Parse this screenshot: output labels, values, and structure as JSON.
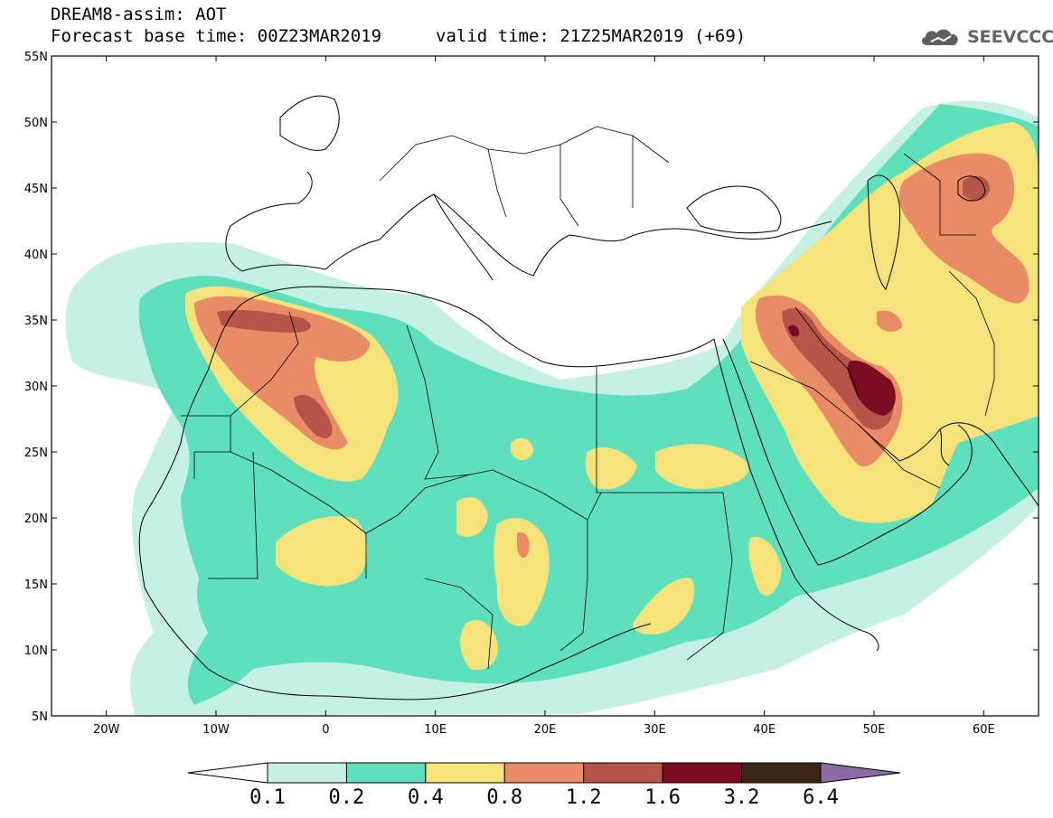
{
  "header": {
    "title": "DREAM8-assim: AOT",
    "base_time_label": "Forecast base time: 00Z23MAR2019",
    "valid_time_label": "valid time: 21Z25MAR2019 (+69)",
    "logo_text": "SEEVCCC"
  },
  "map": {
    "variable": "AOT",
    "projection": "lat-lon",
    "lon_range": [
      -25,
      65
    ],
    "lat_range": [
      5,
      55
    ],
    "lat_ticks": [
      "5N",
      "10N",
      "15N",
      "20N",
      "25N",
      "30N",
      "35N",
      "40N",
      "45N",
      "50N",
      "55N"
    ],
    "lon_ticks": [
      "20W",
      "10W",
      "0",
      "10E",
      "20E",
      "30E",
      "40E",
      "50E",
      "60E"
    ]
  },
  "colorbar": {
    "levels": [
      "0.1",
      "0.2",
      "0.4",
      "0.8",
      "1.2",
      "1.6",
      "3.2",
      "6.4"
    ],
    "colors": [
      "#ffffff",
      "#c6efe6",
      "#5ee0bd",
      "#f5e27a",
      "#e98b65",
      "#b5554a",
      "#7a0d24",
      "#3b2614",
      "#8b6aa8"
    ]
  },
  "colors": {
    "land_outline": "#000000",
    "frame": "#000000",
    "background": "#ffffff"
  }
}
